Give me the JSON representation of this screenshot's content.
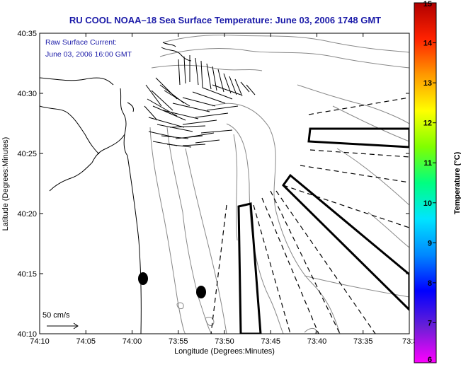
{
  "figure": {
    "title": "RU COOL  NOAA–18  Sea Surface Temperature:  June 03, 2006 1748 GMT",
    "xlabel": "Longitude (Degrees:Minutes)",
    "ylabel": "Latitude (Degrees:Minutes)",
    "note_line1": "Raw Surface Current:",
    "note_line2": "June 03, 2006 16:00 GMT",
    "scale_label": "50 cm/s",
    "x_ticks": [
      "74:10",
      "74:05",
      "74:00",
      "73:55",
      "73:50",
      "73:45",
      "73:40",
      "73:35",
      "73:3"
    ],
    "y_ticks": [
      "40:35",
      "40:30",
      "40:25",
      "40:20",
      "40:15",
      "40:10"
    ]
  },
  "colorbar": {
    "label": "Temperature (°C)",
    "ticks": [
      "15",
      "14",
      "13",
      "12",
      "11",
      "10",
      "9",
      "8",
      "7",
      "6"
    ],
    "colors": [
      "#ff00ff",
      "#6a1fd6",
      "#0000ff",
      "#0088ff",
      "#00e5ff",
      "#00ff80",
      "#80ff00",
      "#ffff00",
      "#ff9900",
      "#ff2200",
      "#b00000"
    ]
  },
  "colors": {
    "title": "#1a1aa8",
    "note": "#1a1aa8",
    "contour": "#888888",
    "coast": "#000000"
  }
}
